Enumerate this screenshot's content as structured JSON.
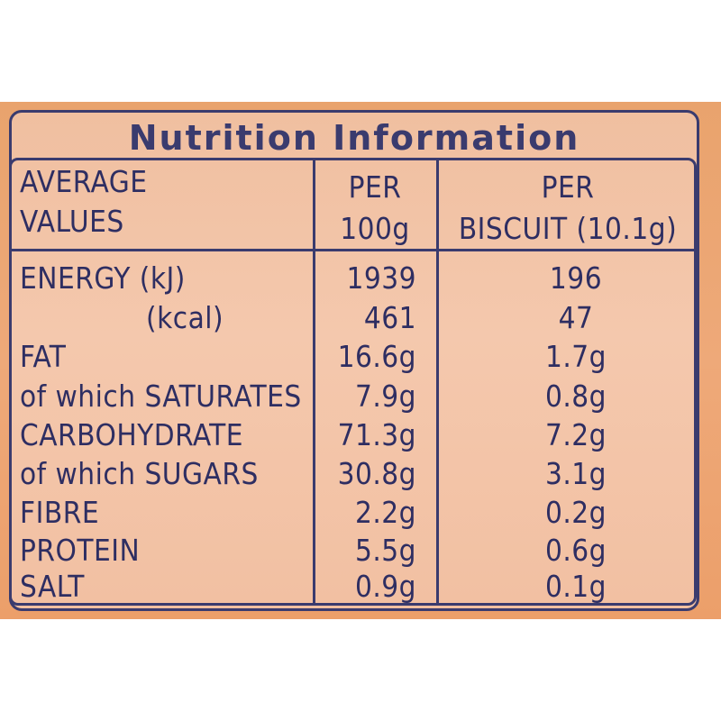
{
  "label": {
    "title": "Nutrition Information",
    "header": {
      "col1_line1": "AVERAGE",
      "col1_line2": "VALUES",
      "col2_line1": "PER",
      "col2_line2": "100g",
      "col3_line1": "PER",
      "col3_line2": "BISCUIT (10.1g)"
    },
    "rows": [
      {
        "name": "ENERGY (kJ)",
        "per100": "1939",
        "perBiscuit": "196"
      },
      {
        "name": "(kcal)",
        "per100": "461",
        "perBiscuit": "47"
      },
      {
        "name": "FAT",
        "per100": "16.6g",
        "perBiscuit": "1.7g"
      },
      {
        "name": "of which SATURATES",
        "per100": "7.9g",
        "perBiscuit": "0.8g"
      },
      {
        "name": "CARBOHYDRATE",
        "per100": "71.3g",
        "perBiscuit": "7.2g"
      },
      {
        "name": "of which SUGARS",
        "per100": "30.8g",
        "perBiscuit": "3.1g"
      },
      {
        "name": "FIBRE",
        "per100": "2.2g",
        "perBiscuit": "0.2g"
      },
      {
        "name": "PROTEIN",
        "per100": "5.5g",
        "perBiscuit": "0.6g"
      },
      {
        "name": "SALT",
        "per100": "0.9g",
        "perBiscuit": "0.1g"
      }
    ]
  }
}
